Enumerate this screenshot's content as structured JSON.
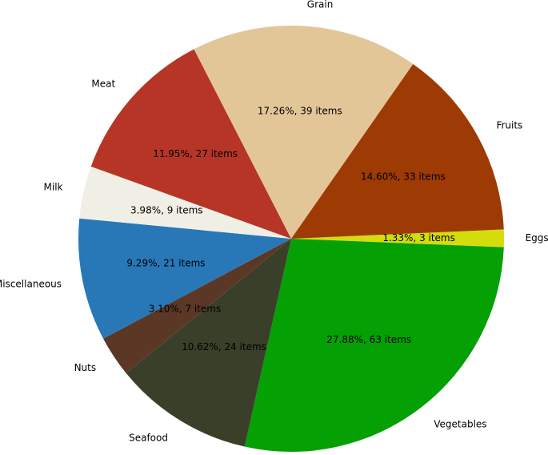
{
  "chart_data": {
    "type": "pie",
    "title": "",
    "slices": [
      {
        "label": "Eggs",
        "percent": 1.33,
        "count": 3,
        "display": "1.33%, 3 items",
        "color": "#d4dc0c"
      },
      {
        "label": "Vegetables",
        "percent": 27.88,
        "count": 63,
        "display": "27.88%, 63 items",
        "color": "#04a004"
      },
      {
        "label": "Seafood",
        "percent": 10.62,
        "count": 24,
        "display": "10.62%, 24 items",
        "color": "#3a3f2a"
      },
      {
        "label": "Nuts",
        "percent": 3.1,
        "count": 7,
        "display": "3.10%, 7 items",
        "color": "#5a3825"
      },
      {
        "label": "Miscellaneous",
        "percent": 9.29,
        "count": 21,
        "display": "9.29%, 21 items",
        "color": "#2878b8"
      },
      {
        "label": "Milk",
        "percent": 3.98,
        "count": 9,
        "display": "3.98%, 9 items",
        "color": "#f0efe5"
      },
      {
        "label": "Meat",
        "percent": 11.95,
        "count": 27,
        "display": "11.95%, 27 items",
        "color": "#b73526"
      },
      {
        "label": "Grain",
        "percent": 17.26,
        "count": 39,
        "display": "17.26%, 39 items",
        "color": "#e3c698"
      },
      {
        "label": "Fruits",
        "percent": 14.6,
        "count": 33,
        "display": "14.60%, 33 items",
        "color": "#9e3a03"
      }
    ]
  }
}
